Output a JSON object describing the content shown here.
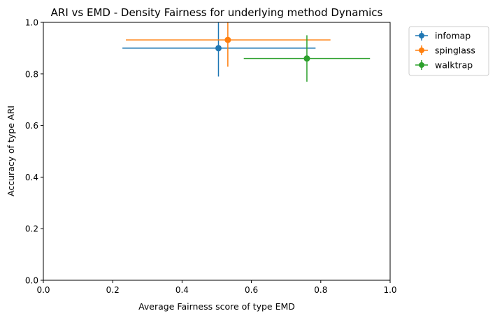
{
  "chart_data": {
    "type": "scatter",
    "title": "ARI vs EMD - Density Fairness for underlying method Dynamics",
    "xlabel": "Average Fairness score of type EMD",
    "ylabel": "Accuracy of type ARI",
    "xlim": [
      0.0,
      1.0
    ],
    "ylim": [
      0.0,
      1.0
    ],
    "xticks": [
      "0.0",
      "0.2",
      "0.4",
      "0.6",
      "0.8",
      "1.0"
    ],
    "yticks": [
      "0.0",
      "0.2",
      "0.4",
      "0.6",
      "0.8",
      "1.0"
    ],
    "grid": false,
    "legend_position": "outside-upper-right",
    "error_bars": true,
    "series": [
      {
        "name": "infomap",
        "color": "#1f77b4",
        "x": 0.505,
        "y": 0.9,
        "xerr": [
          0.228,
          0.785
        ],
        "yerr": [
          0.79,
          1.01
        ]
      },
      {
        "name": "spinglass",
        "color": "#ff7f0e",
        "x": 0.532,
        "y": 0.932,
        "xerr": [
          0.238,
          0.828
        ],
        "yerr": [
          0.828,
          1.036
        ]
      },
      {
        "name": "walktrap",
        "color": "#2ca02c",
        "x": 0.76,
        "y": 0.86,
        "xerr": [
          0.578,
          0.942
        ],
        "yerr": [
          0.77,
          0.95
        ]
      }
    ]
  }
}
